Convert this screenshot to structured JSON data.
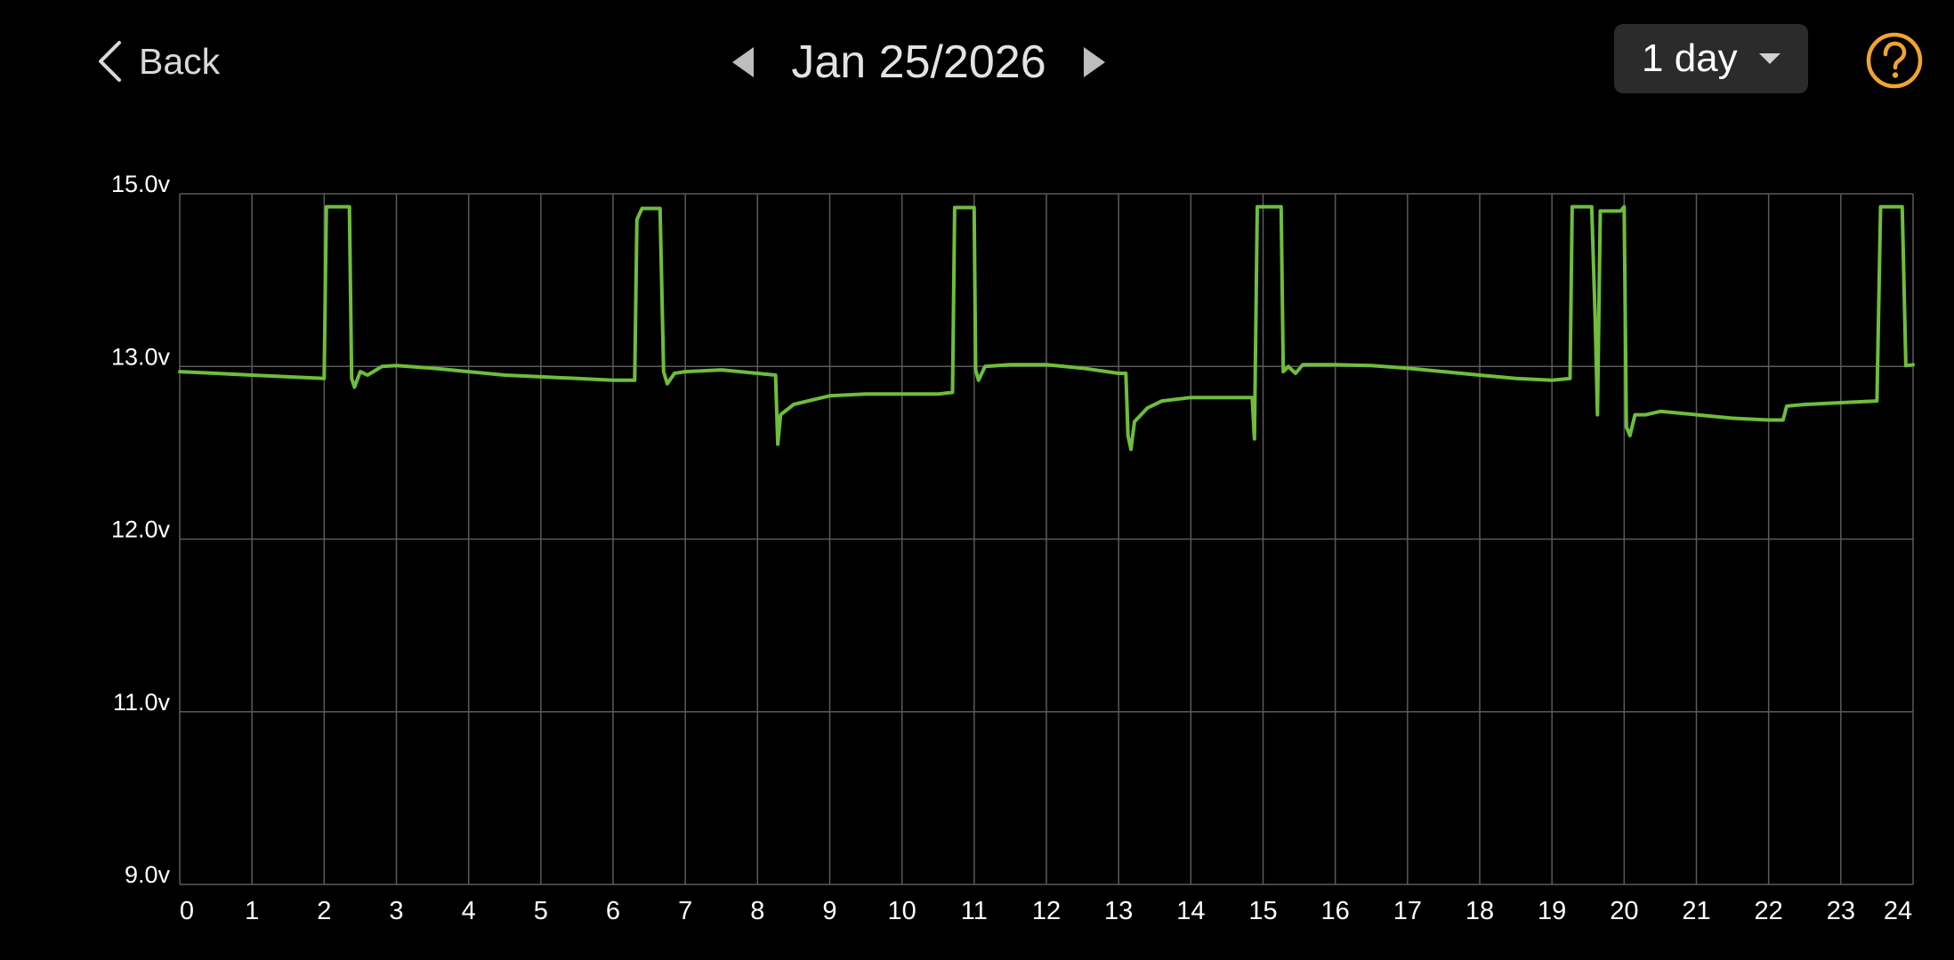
{
  "header": {
    "back_label": "Back",
    "date_label": "Jan 25/2026",
    "range_label": "1 day",
    "icons": {
      "back": "chevron-left-icon",
      "prev": "triangle-left-icon",
      "next": "triangle-right-icon",
      "dropdown": "caret-down-icon",
      "help": "help-circle-icon"
    }
  },
  "colors": {
    "background": "#000000",
    "grid": "#5a5a5a",
    "line": "#6fbd3c",
    "help": "#f0a530",
    "select_bg": "#2b2b2b"
  },
  "chart_data": {
    "type": "line",
    "title": "",
    "xlabel": "",
    "ylabel": "",
    "xlim": [
      0,
      24
    ],
    "y_ticks": [
      9.0,
      11.0,
      12.0,
      13.0,
      15.0
    ],
    "y_tick_labels": [
      "9.0v",
      "11.0v",
      "12.0v",
      "13.0v",
      "15.0v"
    ],
    "x_tick_labels": [
      "0",
      "1",
      "2",
      "3",
      "4",
      "5",
      "6",
      "7",
      "8",
      "9",
      "10",
      "11",
      "12",
      "13",
      "14",
      "15",
      "16",
      "17",
      "18",
      "19",
      "20",
      "21",
      "22",
      "23",
      "24"
    ],
    "grid": true,
    "legend": "none",
    "series": [
      {
        "values": [
          [
            0.0,
            12.97
          ],
          [
            0.5,
            12.96
          ],
          [
            1.0,
            12.95
          ],
          [
            1.5,
            12.94
          ],
          [
            2.0,
            12.93
          ],
          [
            2.03,
            14.85
          ],
          [
            2.35,
            14.85
          ],
          [
            2.38,
            12.93
          ],
          [
            2.42,
            12.88
          ],
          [
            2.5,
            12.97
          ],
          [
            2.6,
            12.95
          ],
          [
            2.8,
            13.0
          ],
          [
            3.0,
            13.01
          ],
          [
            3.5,
            12.99
          ],
          [
            4.0,
            12.97
          ],
          [
            4.5,
            12.95
          ],
          [
            5.0,
            12.94
          ],
          [
            5.5,
            12.93
          ],
          [
            6.0,
            12.92
          ],
          [
            6.3,
            12.92
          ],
          [
            6.33,
            14.7
          ],
          [
            6.4,
            14.83
          ],
          [
            6.65,
            14.83
          ],
          [
            6.7,
            12.97
          ],
          [
            6.75,
            12.9
          ],
          [
            6.85,
            12.96
          ],
          [
            7.0,
            12.97
          ],
          [
            7.5,
            12.98
          ],
          [
            8.0,
            12.96
          ],
          [
            8.25,
            12.95
          ],
          [
            8.28,
            12.55
          ],
          [
            8.32,
            12.72
          ],
          [
            8.5,
            12.78
          ],
          [
            8.7,
            12.8
          ],
          [
            9.0,
            12.83
          ],
          [
            9.5,
            12.84
          ],
          [
            10.0,
            12.84
          ],
          [
            10.5,
            12.84
          ],
          [
            10.7,
            12.85
          ],
          [
            10.73,
            14.84
          ],
          [
            11.0,
            14.84
          ],
          [
            11.02,
            12.98
          ],
          [
            11.06,
            12.92
          ],
          [
            11.15,
            13.0
          ],
          [
            11.5,
            13.02
          ],
          [
            12.0,
            13.02
          ],
          [
            12.5,
            12.99
          ],
          [
            13.0,
            12.96
          ],
          [
            13.1,
            12.96
          ],
          [
            13.13,
            12.6
          ],
          [
            13.17,
            12.52
          ],
          [
            13.22,
            12.68
          ],
          [
            13.4,
            12.76
          ],
          [
            13.6,
            12.8
          ],
          [
            14.0,
            12.82
          ],
          [
            14.5,
            12.82
          ],
          [
            14.85,
            12.82
          ],
          [
            14.88,
            12.58
          ],
          [
            14.92,
            14.85
          ],
          [
            15.25,
            14.85
          ],
          [
            15.28,
            12.97
          ],
          [
            15.35,
            13.0
          ],
          [
            15.45,
            12.96
          ],
          [
            15.55,
            13.02
          ],
          [
            16.0,
            13.02
          ],
          [
            16.5,
            13.01
          ],
          [
            17.0,
            12.99
          ],
          [
            17.5,
            12.97
          ],
          [
            18.0,
            12.95
          ],
          [
            18.5,
            12.93
          ],
          [
            19.0,
            12.92
          ],
          [
            19.25,
            12.93
          ],
          [
            19.28,
            14.85
          ],
          [
            19.55,
            14.85
          ],
          [
            19.6,
            13.5
          ],
          [
            19.63,
            12.72
          ],
          [
            19.67,
            14.8
          ],
          [
            19.95,
            14.8
          ],
          [
            20.0,
            14.85
          ],
          [
            20.03,
            12.65
          ],
          [
            20.08,
            12.6
          ],
          [
            20.15,
            12.72
          ],
          [
            20.3,
            12.72
          ],
          [
            20.5,
            12.74
          ],
          [
            21.0,
            12.72
          ],
          [
            21.5,
            12.7
          ],
          [
            22.0,
            12.69
          ],
          [
            22.2,
            12.69
          ],
          [
            22.25,
            12.77
          ],
          [
            22.5,
            12.78
          ],
          [
            23.0,
            12.79
          ],
          [
            23.5,
            12.8
          ],
          [
            23.55,
            14.85
          ],
          [
            23.85,
            14.85
          ],
          [
            23.9,
            13.01
          ],
          [
            24.0,
            13.02
          ]
        ]
      }
    ]
  }
}
